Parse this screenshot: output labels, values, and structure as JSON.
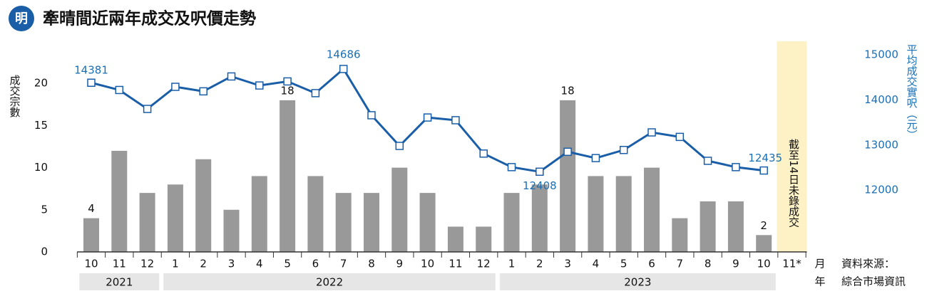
{
  "logo": "明",
  "chart_data": {
    "type": "bar-line",
    "title": "牽晴間近兩年成交及呎價走勢",
    "y_label": "成交宗數",
    "y2_label": "平均成交實呎（元）",
    "x_unit_label": "月",
    "year_unit_label": "年",
    "source_label": "資料來源：",
    "source": "綜合市場資訊",
    "annotation": "截至14日未錄成交",
    "categories": [
      "10",
      "11",
      "12",
      "1",
      "2",
      "3",
      "4",
      "5",
      "6",
      "7",
      "8",
      "9",
      "10",
      "11",
      "12",
      "1",
      "2",
      "3",
      "4",
      "5",
      "6",
      "7",
      "8",
      "9",
      "10",
      "11*"
    ],
    "year_groups": [
      {
        "label": "2021",
        "start": 0,
        "end": 2
      },
      {
        "label": "2022",
        "start": 3,
        "end": 14
      },
      {
        "label": "2023",
        "start": 15,
        "end": 24
      }
    ],
    "highlight_index": 25,
    "highlight_color": "#fdf1c6",
    "series": [
      {
        "type": "bar",
        "color": "#999999",
        "values": [
          4,
          12,
          7,
          8,
          11,
          5,
          9,
          18,
          9,
          7,
          7,
          10,
          7,
          3,
          3,
          7,
          8,
          18,
          9,
          9,
          10,
          4,
          6,
          6,
          2,
          null
        ],
        "value_labels": [
          "4",
          null,
          null,
          null,
          null,
          null,
          null,
          "18",
          null,
          null,
          null,
          null,
          null,
          null,
          null,
          null,
          null,
          "18",
          null,
          null,
          null,
          null,
          null,
          null,
          "2",
          null
        ]
      },
      {
        "type": "line",
        "axis": "y2",
        "color": "#1a5ea8",
        "values": [
          14381,
          14220,
          13800,
          14290,
          14190,
          14520,
          14320,
          14410,
          14150,
          14686,
          13660,
          12980,
          13610,
          13550,
          12810,
          12510,
          12408,
          12850,
          12710,
          12890,
          13280,
          13180,
          12650,
          12510,
          12435,
          null
        ],
        "value_labels": [
          "14381",
          null,
          null,
          null,
          null,
          null,
          null,
          null,
          null,
          "14686",
          null,
          null,
          null,
          null,
          null,
          null,
          "12408",
          null,
          null,
          null,
          null,
          null,
          null,
          null,
          "12435",
          null
        ]
      }
    ],
    "ylim": [
      0,
      25
    ],
    "yticks": [
      0,
      5,
      10,
      15,
      20
    ],
    "y2lim": [
      10630,
      15300
    ],
    "y2ticks": [
      12000,
      13000,
      14000,
      15000
    ]
  }
}
